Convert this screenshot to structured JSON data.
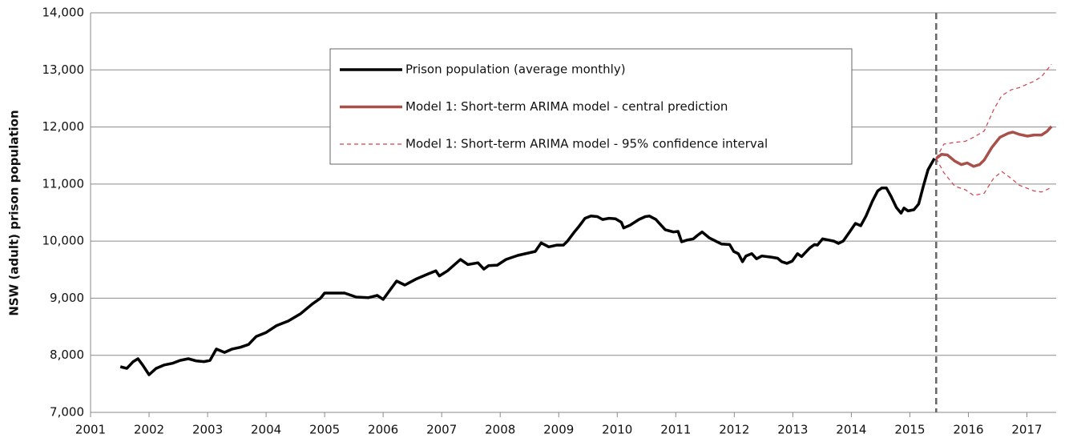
{
  "chart_data": {
    "type": "line",
    "y_label": "NSW (adult) prison population",
    "xlim": [
      2001,
      2017.5
    ],
    "xticks": [
      2001,
      2002,
      2003,
      2004,
      2005,
      2006,
      2007,
      2008,
      2009,
      2010,
      2011,
      2012,
      2013,
      2014,
      2015,
      2016,
      2017
    ],
    "ylim": [
      7000,
      14000
    ],
    "yticks": [
      {
        "value": 7000,
        "label": "7,000"
      },
      {
        "value": 8000,
        "label": "8,000"
      },
      {
        "value": 9000,
        "label": "9,000"
      },
      {
        "value": 10000,
        "label": "10,000"
      },
      {
        "value": 11000,
        "label": "11,000"
      },
      {
        "value": 12000,
        "label": "12,000"
      },
      {
        "value": 13000,
        "label": "13,000"
      },
      {
        "value": 14000,
        "label": "14,000"
      }
    ],
    "grid": true,
    "forecast_start": 2015.45,
    "series": [
      {
        "name": "Prison population (average monthly)",
        "color": "#000000",
        "width": 3.5,
        "x": [
          2001.51,
          2001.62,
          2001.73,
          2001.81,
          2001.89,
          2002.0,
          2002.12,
          2002.26,
          2002.4,
          2002.53,
          2002.67,
          2002.81,
          2002.94,
          2003.04,
          2003.15,
          2003.29,
          2003.42,
          2003.56,
          2003.7,
          2003.83,
          2004.0,
          2004.18,
          2004.38,
          2004.59,
          2004.79,
          2004.93,
          2005.0,
          2005.34,
          2005.54,
          2005.75,
          2005.9,
          2006.0,
          2006.23,
          2006.37,
          2006.57,
          2006.78,
          2006.9,
          2006.96,
          2007.1,
          2007.32,
          2007.45,
          2007.62,
          2007.72,
          2007.8,
          2007.95,
          2008.1,
          2008.3,
          2008.6,
          2008.7,
          2008.83,
          2008.97,
          2009.08,
          2009.15,
          2009.26,
          2009.34,
          2009.45,
          2009.55,
          2009.66,
          2009.75,
          2009.86,
          2009.97,
          2010.07,
          2010.11,
          2010.22,
          2010.37,
          2010.48,
          2010.55,
          2010.66,
          2010.73,
          2010.82,
          2010.96,
          2011.04,
          2011.1,
          2011.2,
          2011.3,
          2011.37,
          2011.45,
          2011.57,
          2011.68,
          2011.78,
          2011.92,
          2011.99,
          2012.07,
          2012.14,
          2012.2,
          2012.3,
          2012.38,
          2012.47,
          2012.63,
          2012.74,
          2012.81,
          2012.9,
          2012.99,
          2013.08,
          2013.15,
          2013.29,
          2013.37,
          2013.42,
          2013.51,
          2013.7,
          2013.78,
          2013.86,
          2013.97,
          2014.07,
          2014.16,
          2014.25,
          2014.36,
          2014.45,
          2014.52,
          2014.6,
          2014.68,
          2014.77,
          2014.85,
          2014.9,
          2014.97,
          2015.07,
          2015.15,
          2015.23,
          2015.31,
          2015.42
        ],
        "values": [
          7800,
          7770,
          7890,
          7940,
          7830,
          7660,
          7770,
          7830,
          7860,
          7910,
          7940,
          7900,
          7890,
          7910,
          8110,
          8050,
          8110,
          8140,
          8190,
          8330,
          8400,
          8520,
          8600,
          8730,
          8900,
          9000,
          9090,
          9090,
          9020,
          9010,
          9050,
          8980,
          9300,
          9230,
          9340,
          9430,
          9480,
          9390,
          9480,
          9680,
          9590,
          9620,
          9510,
          9570,
          9580,
          9680,
          9750,
          9820,
          9970,
          9900,
          9930,
          9930,
          10000,
          10150,
          10250,
          10400,
          10440,
          10430,
          10380,
          10400,
          10390,
          10330,
          10230,
          10280,
          10380,
          10430,
          10440,
          10380,
          10300,
          10200,
          10160,
          10170,
          9990,
          10020,
          10040,
          10100,
          10160,
          10060,
          10000,
          9950,
          9940,
          9820,
          9780,
          9640,
          9740,
          9780,
          9690,
          9740,
          9720,
          9700,
          9640,
          9610,
          9650,
          9780,
          9730,
          9880,
          9940,
          9930,
          10040,
          10000,
          9960,
          10000,
          10160,
          10310,
          10270,
          10440,
          10700,
          10880,
          10930,
          10930,
          10780,
          10590,
          10490,
          10580,
          10530,
          10550,
          10650,
          10960,
          11250,
          11450
        ]
      },
      {
        "name": "Model 1: Short-term ARIMA model - central prediction",
        "color": "#a8504a",
        "width": 3.5,
        "x": [
          2015.45,
          2015.54,
          2015.64,
          2015.77,
          2015.88,
          2015.98,
          2016.09,
          2016.19,
          2016.27,
          2016.4,
          2016.54,
          2016.68,
          2016.76,
          2016.87,
          2017.01,
          2017.12,
          2017.25,
          2017.34,
          2017.42
        ],
        "values": [
          11450,
          11520,
          11510,
          11400,
          11340,
          11370,
          11310,
          11340,
          11420,
          11640,
          11820,
          11890,
          11910,
          11870,
          11840,
          11860,
          11860,
          11920,
          12010
        ]
      },
      {
        "name": "Model 1: Short-term ARIMA model - 95% confidence interval",
        "color": "#d0404a",
        "width": 1.2,
        "dashed": true,
        "x": [
          2015.45,
          2015.58,
          2015.77,
          2015.95,
          2016.09,
          2016.27,
          2016.43,
          2016.57,
          2016.73,
          2016.87,
          2017.12,
          2017.25,
          2017.42
        ],
        "upper": [
          11450,
          11700,
          11730,
          11750,
          11820,
          11930,
          12300,
          12550,
          12650,
          12690,
          12800,
          12880,
          13100
        ],
        "lower": [
          11450,
          11200,
          10960,
          10900,
          10800,
          10840,
          11100,
          11220,
          11100,
          10980,
          10880,
          10860,
          10940
        ]
      }
    ]
  }
}
